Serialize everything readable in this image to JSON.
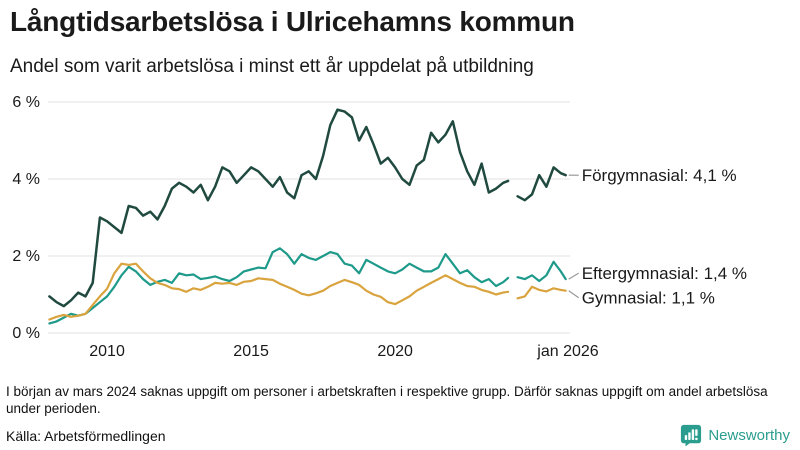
{
  "header": {
    "title": "Långtidsarbetslösa i Ulricehamns kommun",
    "subtitle": "Andel som varit arbetslösa i minst ett år uppdelat på utbildning"
  },
  "chart_data": {
    "type": "line",
    "title": "Långtidsarbetslösa i Ulricehamns kommun",
    "subtitle": "Andel som varit arbetslösa i minst ett år uppdelat på utbildning",
    "grid": "horizontal",
    "legend_position": "right-end-labels",
    "xlim": [
      2007.95,
      2026.07
    ],
    "ylim": [
      0,
      6
    ],
    "y_ticks": [
      "0 %",
      "2 %",
      "4 %",
      "6 %"
    ],
    "y_tick_values": [
      0,
      2,
      4,
      6
    ],
    "x_ticks": [
      {
        "label": "2010",
        "value": 2010
      },
      {
        "label": "2015",
        "value": 2015
      },
      {
        "label": "2020",
        "value": 2020
      },
      {
        "label": "jan 2026",
        "value": 2026
      }
    ],
    "gap_note": "Data saknas i början av mars 2024",
    "x": [
      2008.0,
      2008.25,
      2008.5,
      2008.75,
      2009.0,
      2009.25,
      2009.5,
      2009.75,
      2010.0,
      2010.25,
      2010.5,
      2010.75,
      2011.0,
      2011.25,
      2011.5,
      2011.75,
      2012.0,
      2012.25,
      2012.5,
      2012.75,
      2013.0,
      2013.25,
      2013.5,
      2013.75,
      2014.0,
      2014.25,
      2014.5,
      2014.75,
      2015.0,
      2015.25,
      2015.5,
      2015.75,
      2016.0,
      2016.25,
      2016.5,
      2016.75,
      2017.0,
      2017.25,
      2017.5,
      2017.75,
      2018.0,
      2018.25,
      2018.5,
      2018.75,
      2019.0,
      2019.25,
      2019.5,
      2019.75,
      2020.0,
      2020.25,
      2020.5,
      2020.75,
      2021.0,
      2021.25,
      2021.5,
      2021.75,
      2022.0,
      2022.25,
      2022.5,
      2022.75,
      2023.0,
      2023.25,
      2023.5,
      2023.75,
      2023.92,
      2024.08,
      2024.25,
      2024.5,
      2024.75,
      2025.0,
      2025.25,
      2025.5,
      2025.75,
      2025.92
    ],
    "series": [
      {
        "name": "Förgymnasial",
        "slug": "forgymnasial",
        "label": "Förgymnasial: 4,1 %",
        "last_value_label": "4,1 %",
        "color": "#204a40",
        "values": [
          0.95,
          0.8,
          0.7,
          0.85,
          1.05,
          0.95,
          1.3,
          3.0,
          2.9,
          2.75,
          2.6,
          3.3,
          3.25,
          3.05,
          3.15,
          2.95,
          3.3,
          3.75,
          3.9,
          3.8,
          3.65,
          3.85,
          3.45,
          3.8,
          4.3,
          4.2,
          3.9,
          4.1,
          4.3,
          4.2,
          4.0,
          3.8,
          4.05,
          3.65,
          3.5,
          4.1,
          4.2,
          4.0,
          4.6,
          5.4,
          5.8,
          5.75,
          5.6,
          5.0,
          5.35,
          4.9,
          4.4,
          4.55,
          4.3,
          4.0,
          3.85,
          4.35,
          4.5,
          5.2,
          4.95,
          5.15,
          5.5,
          4.7,
          4.2,
          3.85,
          4.4,
          3.65,
          3.75,
          3.9,
          3.95,
          null,
          3.55,
          3.45,
          3.6,
          4.1,
          3.8,
          4.3,
          4.15,
          4.1
        ]
      },
      {
        "name": "Eftergymnasial",
        "slug": "eftergymnasial",
        "label": "Eftergymnasial: 1,4 %",
        "last_value_label": "1,4 %",
        "color": "#1d9a8a",
        "values": [
          0.25,
          0.3,
          0.4,
          0.5,
          0.45,
          0.5,
          0.65,
          0.8,
          0.95,
          1.2,
          1.5,
          1.72,
          1.6,
          1.4,
          1.25,
          1.33,
          1.38,
          1.3,
          1.55,
          1.5,
          1.52,
          1.4,
          1.43,
          1.47,
          1.4,
          1.35,
          1.45,
          1.6,
          1.65,
          1.7,
          1.68,
          2.1,
          2.2,
          2.05,
          1.8,
          2.05,
          1.95,
          1.9,
          2.0,
          2.1,
          2.05,
          1.8,
          1.75,
          1.55,
          1.9,
          1.8,
          1.7,
          1.6,
          1.55,
          1.65,
          1.8,
          1.7,
          1.6,
          1.6,
          1.7,
          2.05,
          1.8,
          1.55,
          1.63,
          1.45,
          1.32,
          1.4,
          1.22,
          1.32,
          1.43,
          null,
          1.45,
          1.4,
          1.5,
          1.35,
          1.5,
          1.85,
          1.6,
          1.4
        ]
      },
      {
        "name": "Gymnasial",
        "slug": "gymnasial",
        "label": "Gymnasial: 1,1 %",
        "last_value_label": "1,1 %",
        "color": "#d9a33e",
        "values": [
          0.35,
          0.42,
          0.47,
          0.42,
          0.45,
          0.5,
          0.73,
          0.95,
          1.15,
          1.55,
          1.8,
          1.77,
          1.8,
          1.6,
          1.42,
          1.3,
          1.25,
          1.16,
          1.14,
          1.07,
          1.16,
          1.12,
          1.2,
          1.3,
          1.28,
          1.3,
          1.25,
          1.33,
          1.35,
          1.42,
          1.4,
          1.38,
          1.28,
          1.2,
          1.12,
          1.02,
          0.98,
          1.03,
          1.1,
          1.22,
          1.3,
          1.38,
          1.32,
          1.25,
          1.1,
          1.0,
          0.94,
          0.8,
          0.75,
          0.85,
          0.95,
          1.1,
          1.2,
          1.3,
          1.4,
          1.5,
          1.4,
          1.3,
          1.22,
          1.2,
          1.12,
          1.07,
          1.0,
          1.05,
          1.07,
          null,
          0.9,
          0.95,
          1.2,
          1.12,
          1.08,
          1.16,
          1.12,
          1.1
        ]
      }
    ]
  },
  "footer": {
    "footnote": "I början av mars 2024 saknas uppgift om personer i arbetskraften i respektive grupp. Därför saknas uppgift om andel arbetslösa under perioden.",
    "source": "Källa: Arbetsförmedlingen",
    "brand": "Newsworthy"
  },
  "colors": {
    "forgymnasial": "#204a40",
    "eftergymnasial": "#1d9a8a",
    "gymnasial": "#d9a33e",
    "gridline": "#e0e0e0",
    "text": "#1a1a1a",
    "brand_teal": "#2a9d8f"
  }
}
